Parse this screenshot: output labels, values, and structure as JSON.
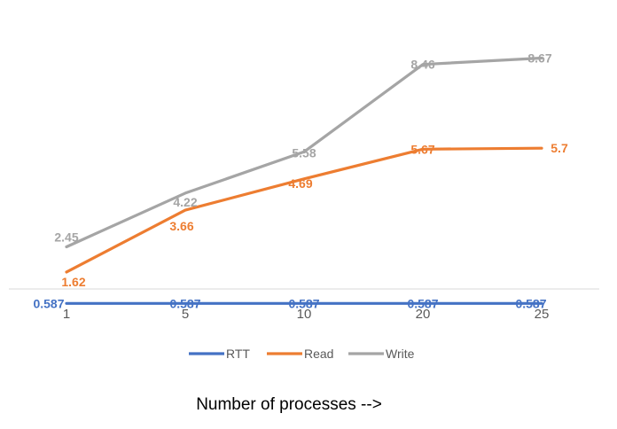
{
  "chart_data": {
    "type": "line",
    "title": "",
    "xlabel": "Number of processes -->",
    "ylabel": "",
    "categories": [
      "1",
      "5",
      "10",
      "20",
      "25"
    ],
    "ylim": [
      0,
      10
    ],
    "grid": false,
    "legend_position": "bottom",
    "series": [
      {
        "name": "RTT",
        "color": "#4472C4",
        "label_color": "#4472C4",
        "label_bold": true,
        "values": [
          0.587,
          0.587,
          0.587,
          0.587,
          0.587
        ],
        "labels": [
          "0.587",
          "0.587",
          "0.587",
          "0.587",
          "0.587"
        ]
      },
      {
        "name": "Read",
        "color": "#ED7D31",
        "label_color": "#ED7D31",
        "label_bold": true,
        "values": [
          1.62,
          3.66,
          4.69,
          5.67,
          5.7
        ],
        "labels": [
          "1.62",
          "3.66",
          "4.69",
          "5.67",
          "5.7"
        ]
      },
      {
        "name": "Write",
        "color": "#A5A5A5",
        "label_color": "#A5A5A5",
        "label_bold": false,
        "values": [
          2.45,
          4.22,
          5.58,
          8.46,
          8.67
        ],
        "labels": [
          "2.45",
          "4.22",
          "5.58",
          "8.46",
          "8.67"
        ]
      }
    ]
  }
}
